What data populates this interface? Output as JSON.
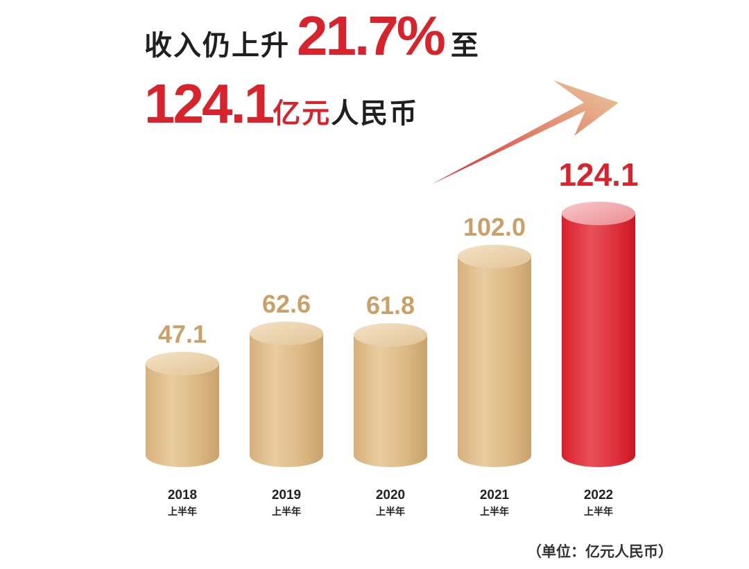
{
  "headline": {
    "prefix": "收入仍上升",
    "growth": "21.7%",
    "connector": "至",
    "amount": "124.1",
    "unit_red": "亿元",
    "unit_dark": "人民币"
  },
  "unit_note": "（单位：亿元人民币）",
  "colors": {
    "accent": "#d8232d",
    "gold": "#d9b47c",
    "gold_label": "#c8a068",
    "dark_text": "#1f1f1f"
  },
  "chart_data": {
    "type": "bar",
    "style": "cylinder",
    "categories": [
      "2018",
      "2019",
      "2020",
      "2021",
      "2022"
    ],
    "category_sublabel": "上半年",
    "values": [
      47.1,
      62.6,
      61.8,
      102.0,
      124.1
    ],
    "value_labels": [
      "47.1",
      "62.6",
      "61.8",
      "102.0",
      "124.1"
    ],
    "highlight_index": 4,
    "annotation": "arrow-up-right",
    "grid": false,
    "legend": "none"
  }
}
